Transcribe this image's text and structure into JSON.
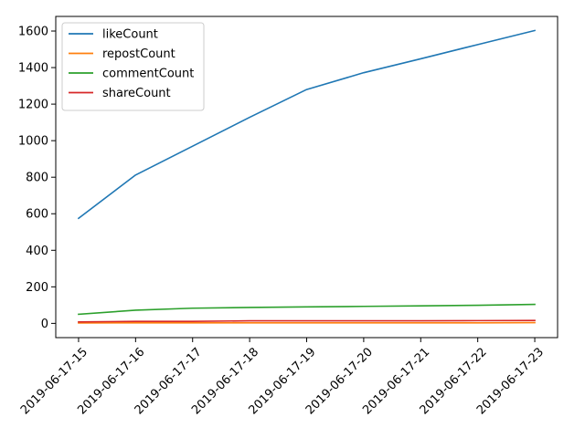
{
  "chart_data": {
    "type": "line",
    "title": "",
    "xlabel": "",
    "ylabel": "",
    "x": [
      "2019-06-17-15",
      "2019-06-17-16",
      "2019-06-17-17",
      "2019-06-17-18",
      "2019-06-17-19",
      "2019-06-17-20",
      "2019-06-17-21",
      "2019-06-17-22",
      "2019-06-17-23"
    ],
    "ylim": [
      -78,
      1680
    ],
    "yticks": [
      0,
      200,
      400,
      600,
      800,
      1000,
      1200,
      1400,
      1600
    ],
    "grid": false,
    "legend_position": "top-left",
    "series": [
      {
        "name": "likeCount",
        "color": "#1f77b4",
        "values": [
          575,
          812,
          970,
          1128,
          1280,
          1372,
          1448,
          1526,
          1603
        ]
      },
      {
        "name": "repostCount",
        "color": "#ff7f0e",
        "values": [
          2,
          3,
          3,
          3,
          3,
          3,
          3,
          3,
          4
        ]
      },
      {
        "name": "commentCount",
        "color": "#2ca02c",
        "values": [
          50,
          72,
          83,
          87,
          90,
          93,
          96,
          99,
          104
        ]
      },
      {
        "name": "shareCount",
        "color": "#d62728",
        "values": [
          8,
          11,
          11,
          14,
          14,
          14,
          14,
          15,
          16
        ]
      }
    ]
  }
}
